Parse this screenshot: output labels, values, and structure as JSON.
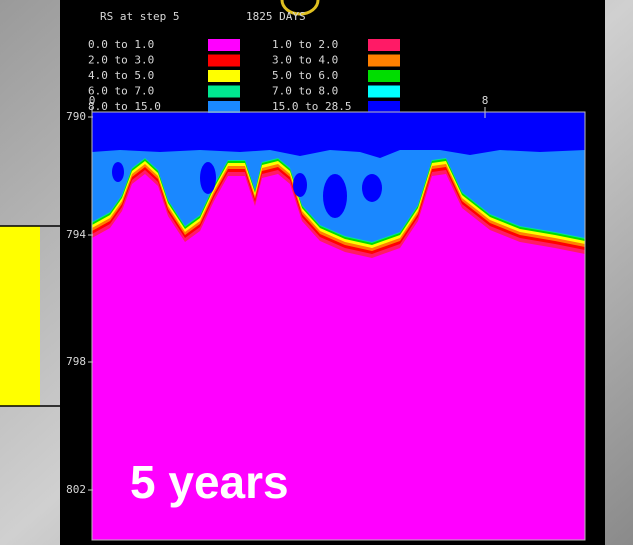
{
  "plot": {
    "title": "RS at step 5",
    "time": "1825 DAYS",
    "legend": [
      {
        "label": "0.0 to  1.0",
        "color": "#ff00ff"
      },
      {
        "label": "1.0 to  2.0",
        "color": "#ff1a66"
      },
      {
        "label": "2.0 to  3.0",
        "color": "#ff0000"
      },
      {
        "label": "3.0 to  4.0",
        "color": "#ff8000"
      },
      {
        "label": "4.0 to  5.0",
        "color": "#ffff00"
      },
      {
        "label": "5.0 to  6.0",
        "color": "#00dd00"
      },
      {
        "label": "6.0 to  7.0",
        "color": "#00e890"
      },
      {
        "label": "7.0 to  8.0",
        "color": "#00ffff"
      },
      {
        "label": "8.0 to 15.0",
        "color": "#1a88ff"
      },
      {
        "label": "15.0 to 28.5",
        "color": "#0000ff"
      }
    ],
    "y_labels": [
      "790",
      "794",
      "798",
      "802"
    ],
    "x_labels": [
      "0",
      "8"
    ],
    "caption": "5 years"
  }
}
